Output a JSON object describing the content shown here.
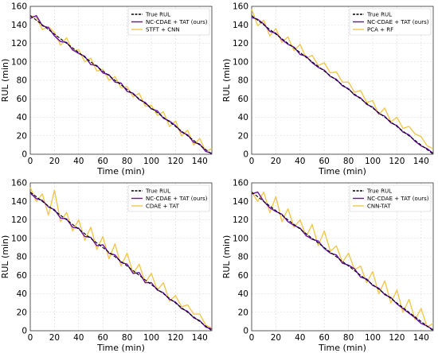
{
  "chart_data": [
    {
      "type": "line",
      "xlabel": "Time (min)",
      "ylabel": "RUL (min)",
      "xlim": [
        0,
        150
      ],
      "ylim": [
        0,
        160
      ],
      "xticks": [
        "0",
        "20",
        "40",
        "60",
        "80",
        "100",
        "120",
        "140"
      ],
      "yticks": [
        "0",
        "20",
        "40",
        "60",
        "80",
        "100",
        "120",
        "140",
        "160"
      ],
      "grid": true,
      "legend_position": "top-right",
      "x": [
        0,
        5,
        10,
        15,
        20,
        25,
        30,
        35,
        40,
        45,
        50,
        55,
        60,
        65,
        70,
        75,
        80,
        85,
        90,
        95,
        100,
        105,
        110,
        115,
        120,
        125,
        130,
        135,
        140,
        145,
        150
      ],
      "series": [
        {
          "name": "True RUL",
          "color": "#000000",
          "style": "dashed",
          "values": [
            150,
            145,
            140,
            135,
            130,
            125,
            120,
            115,
            110,
            105,
            100,
            95,
            90,
            85,
            80,
            75,
            70,
            65,
            60,
            55,
            50,
            45,
            40,
            35,
            30,
            25,
            20,
            15,
            10,
            5,
            0
          ]
        },
        {
          "name": "NC-CDAE + TAT (ours)",
          "color": "#6a0dad",
          "style": "solid",
          "values": [
            147,
            150,
            139,
            137,
            128,
            122,
            121,
            113,
            109,
            106,
            97,
            96,
            88,
            86,
            78,
            77,
            68,
            66,
            59,
            56,
            49,
            47,
            39,
            36,
            31,
            24,
            21,
            13,
            11,
            3,
            1
          ]
        },
        {
          "name": "STFT + CNN",
          "color": "#f2c84b",
          "style": "solid",
          "values": [
            150,
            148,
            135,
            138,
            132,
            118,
            126,
            112,
            113,
            100,
            104,
            90,
            92,
            80,
            84,
            72,
            73,
            62,
            66,
            52,
            53,
            42,
            46,
            30,
            36,
            20,
            26,
            10,
            17,
            3,
            6
          ]
        }
      ]
    },
    {
      "type": "line",
      "xlabel": "Time (min)",
      "ylabel": "RUL (min)",
      "xlim": [
        0,
        150
      ],
      "ylim": [
        0,
        160
      ],
      "xticks": [
        "0",
        "20",
        "40",
        "60",
        "80",
        "100",
        "120",
        "140"
      ],
      "yticks": [
        "0",
        "20",
        "40",
        "60",
        "80",
        "100",
        "120",
        "140",
        "160"
      ],
      "grid": true,
      "legend_position": "top-right",
      "x": [
        0,
        5,
        10,
        15,
        20,
        25,
        30,
        35,
        40,
        45,
        50,
        55,
        60,
        65,
        70,
        75,
        80,
        85,
        90,
        95,
        100,
        105,
        110,
        115,
        120,
        125,
        130,
        135,
        140,
        145,
        150
      ],
      "series": [
        {
          "name": "True RUL",
          "color": "#000000",
          "style": "dashed",
          "values": [
            150,
            145,
            140,
            135,
            130,
            125,
            120,
            115,
            110,
            105,
            100,
            95,
            90,
            85,
            80,
            75,
            70,
            65,
            60,
            55,
            50,
            45,
            40,
            35,
            30,
            25,
            20,
            15,
            10,
            5,
            0
          ]
        },
        {
          "name": "NC-CDAE + TAT (ours)",
          "color": "#6a0dad",
          "style": "solid",
          "values": [
            148,
            146,
            141,
            133,
            131,
            124,
            119,
            116,
            108,
            106,
            99,
            94,
            91,
            84,
            81,
            74,
            71,
            64,
            61,
            54,
            51,
            44,
            41,
            34,
            31,
            24,
            21,
            14,
            9,
            6,
            1
          ]
        },
        {
          "name": "PCA + RF",
          "color": "#f2c84b",
          "style": "solid",
          "values": [
            157,
            139,
            145,
            128,
            136,
            121,
            127,
            112,
            119,
            104,
            107,
            96,
            99,
            88,
            89,
            78,
            78,
            67,
            69,
            56,
            58,
            43,
            50,
            35,
            40,
            28,
            30,
            22,
            19,
            9,
            6
          ]
        }
      ]
    },
    {
      "type": "line",
      "xlabel": "Time (min)",
      "ylabel": "RUL (min)",
      "xlim": [
        0,
        150
      ],
      "ylim": [
        0,
        160
      ],
      "xticks": [
        "0",
        "20",
        "40",
        "60",
        "80",
        "100",
        "120",
        "140"
      ],
      "yticks": [
        "0",
        "20",
        "40",
        "60",
        "80",
        "100",
        "120",
        "140",
        "160"
      ],
      "grid": true,
      "legend_position": "top-right",
      "x": [
        0,
        5,
        10,
        15,
        20,
        25,
        30,
        35,
        40,
        45,
        50,
        55,
        60,
        65,
        70,
        75,
        80,
        85,
        90,
        95,
        100,
        105,
        110,
        115,
        120,
        125,
        130,
        135,
        140,
        145,
        150
      ],
      "series": [
        {
          "name": "True RUL",
          "color": "#000000",
          "style": "dashed",
          "values": [
            150,
            145,
            140,
            135,
            130,
            125,
            120,
            115,
            110,
            105,
            100,
            95,
            90,
            85,
            80,
            75,
            70,
            65,
            60,
            55,
            50,
            45,
            40,
            35,
            30,
            25,
            20,
            15,
            10,
            5,
            0
          ]
        },
        {
          "name": "NC-CDAE + TAT (ours)",
          "color": "#6a0dad",
          "style": "solid",
          "values": [
            149,
            143,
            141,
            134,
            131,
            122,
            121,
            112,
            111,
            102,
            101,
            92,
            93,
            84,
            82,
            74,
            72,
            62,
            63,
            52,
            52,
            44,
            41,
            34,
            31,
            24,
            21,
            14,
            11,
            4,
            2
          ]
        },
        {
          "name": "CDAE + TAT",
          "color": "#f2c84b",
          "style": "solid",
          "values": [
            155,
            140,
            148,
            125,
            152,
            118,
            128,
            108,
            120,
            98,
            112,
            88,
            102,
            78,
            94,
            70,
            84,
            62,
            72,
            52,
            62,
            44,
            52,
            32,
            38,
            26,
            28,
            18,
            18,
            6,
            3
          ]
        }
      ]
    },
    {
      "type": "line",
      "xlabel": "Time (min)",
      "ylabel": "RUL (min)",
      "xlim": [
        0,
        150
      ],
      "ylim": [
        0,
        160
      ],
      "xticks": [
        "0",
        "20",
        "40",
        "60",
        "80",
        "100",
        "120",
        "140"
      ],
      "yticks": [
        "0",
        "20",
        "40",
        "60",
        "80",
        "100",
        "120",
        "140",
        "160"
      ],
      "grid": true,
      "legend_position": "top-right",
      "x": [
        0,
        5,
        10,
        15,
        20,
        25,
        30,
        35,
        40,
        45,
        50,
        55,
        60,
        65,
        70,
        75,
        80,
        85,
        90,
        95,
        100,
        105,
        110,
        115,
        120,
        125,
        130,
        135,
        140,
        145,
        150
      ],
      "series": [
        {
          "name": "True RUL",
          "color": "#000000",
          "style": "dashed",
          "values": [
            150,
            145,
            140,
            135,
            130,
            125,
            120,
            115,
            110,
            105,
            100,
            95,
            90,
            85,
            80,
            75,
            70,
            65,
            60,
            55,
            50,
            45,
            40,
            35,
            30,
            25,
            20,
            15,
            10,
            5,
            0
          ]
        },
        {
          "name": "NC-CDAE + TAT (ours)",
          "color": "#6a0dad",
          "style": "solid",
          "values": [
            148,
            150,
            140,
            133,
            129,
            126,
            118,
            114,
            111,
            103,
            99,
            97,
            89,
            84,
            82,
            73,
            71,
            67,
            58,
            56,
            49,
            46,
            39,
            36,
            29,
            24,
            19,
            14,
            8,
            5,
            1
          ]
        },
        {
          "name": "CNN-TAT",
          "color": "#f2c84b",
          "style": "solid",
          "values": [
            150,
            140,
            150,
            128,
            145,
            118,
            132,
            112,
            120,
            102,
            115,
            92,
            108,
            86,
            92,
            74,
            84,
            66,
            70,
            52,
            64,
            40,
            54,
            30,
            44,
            20,
            34,
            12,
            24,
            4,
            8
          ]
        }
      ]
    }
  ]
}
